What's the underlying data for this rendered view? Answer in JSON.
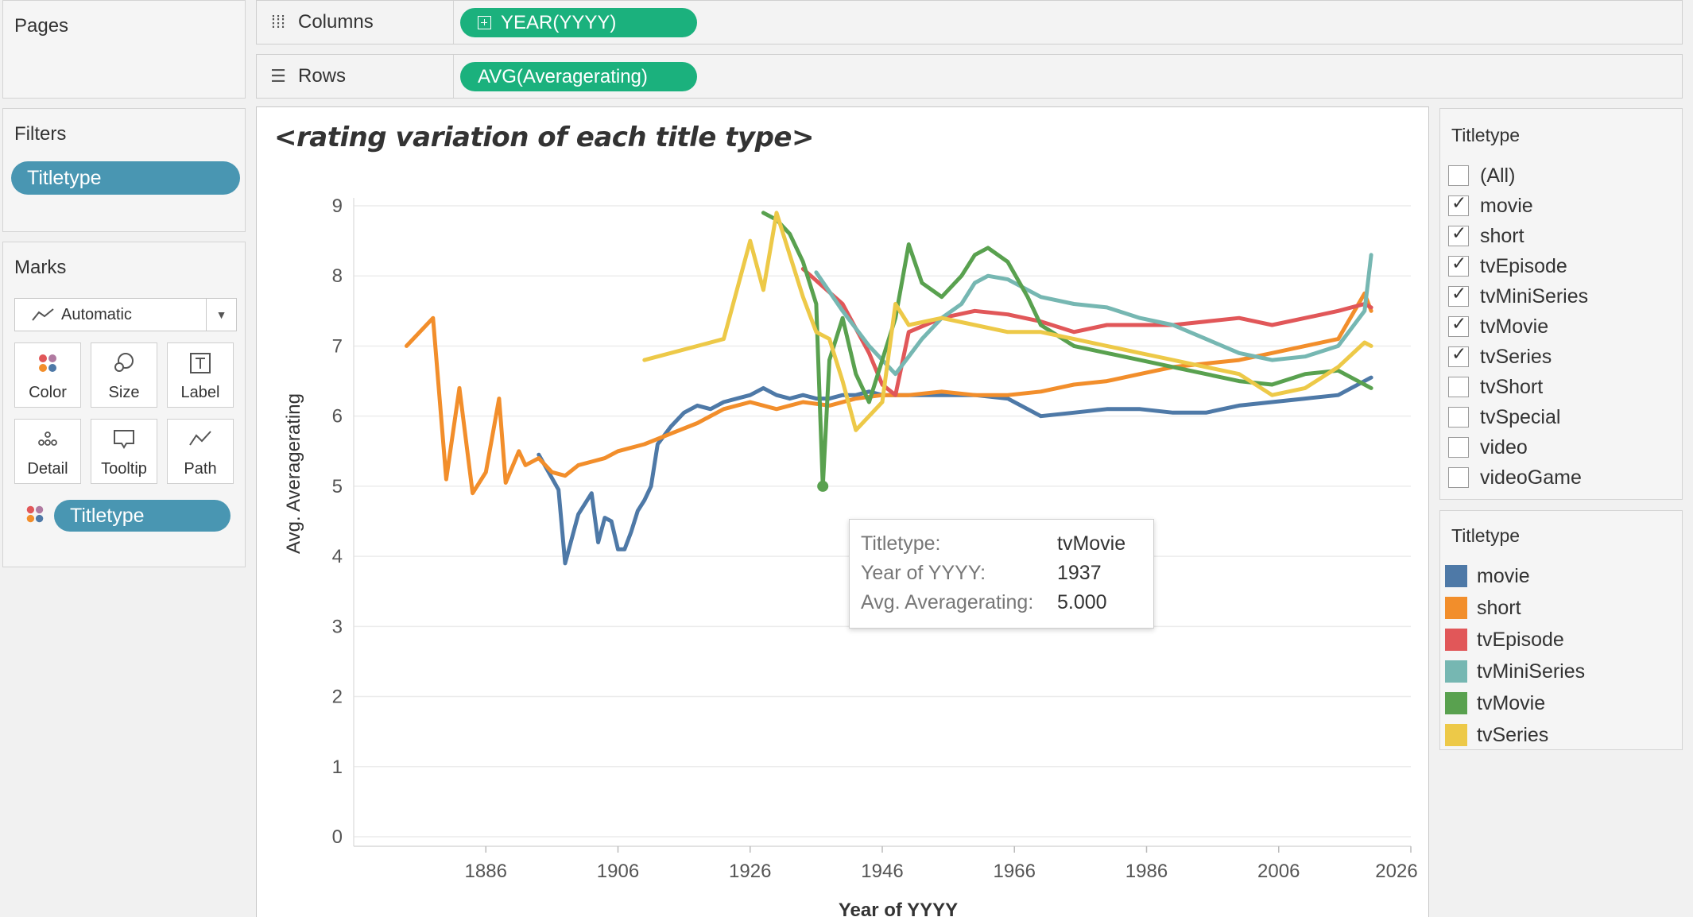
{
  "pages": {
    "title": "Pages"
  },
  "columns": {
    "label": "Columns",
    "pill": "YEAR(YYYY)"
  },
  "rows": {
    "label": "Rows",
    "pill": "AVG(Averagerating)"
  },
  "filters": {
    "title": "Filters",
    "pill": "Titletype"
  },
  "marks": {
    "title": "Marks",
    "type": "Automatic",
    "buttons": [
      "Color",
      "Size",
      "Label",
      "Detail",
      "Tooltip",
      "Path"
    ],
    "color_pill": "Titletype"
  },
  "chart": {
    "title": "<rating variation of each title type>",
    "xlabel": "Year of YYYY",
    "ylabel": "Avg. Averagerating"
  },
  "tooltip": {
    "rows": [
      {
        "label": "Titletype:",
        "value": "tvMovie"
      },
      {
        "label": "Year of YYYY:",
        "value": "1937"
      },
      {
        "label": "Avg. Averagerating:",
        "value": "5.000"
      }
    ]
  },
  "filter_card": {
    "title": "Titletype",
    "items": [
      {
        "label": "(All)",
        "checked": false
      },
      {
        "label": "movie",
        "checked": true
      },
      {
        "label": "short",
        "checked": true
      },
      {
        "label": "tvEpisode",
        "checked": true
      },
      {
        "label": "tvMiniSeries",
        "checked": true
      },
      {
        "label": "tvMovie",
        "checked": true
      },
      {
        "label": "tvSeries",
        "checked": true
      },
      {
        "label": "tvShort",
        "checked": false
      },
      {
        "label": "tvSpecial",
        "checked": false
      },
      {
        "label": "video",
        "checked": false
      },
      {
        "label": "videoGame",
        "checked": false
      }
    ]
  },
  "legend": {
    "title": "Titletype",
    "items": [
      {
        "label": "movie",
        "color": "#4e79a7"
      },
      {
        "label": "short",
        "color": "#f28e2b"
      },
      {
        "label": "tvEpisode",
        "color": "#e15759"
      },
      {
        "label": "tvMiniSeries",
        "color": "#76b7b2"
      },
      {
        "label": "tvMovie",
        "color": "#59a14f"
      },
      {
        "label": "tvSeries",
        "color": "#edc948"
      }
    ]
  },
  "chart_data": {
    "type": "line",
    "title": "<rating variation of each title type>",
    "xlabel": "Year of YYYY",
    "ylabel": "Avg. Averagerating",
    "xlim": [
      1866,
      2026
    ],
    "ylim": [
      0,
      9
    ],
    "x_ticks": [
      "1886",
      "1906",
      "1926",
      "1946",
      "1966",
      "1986",
      "2006",
      "2026"
    ],
    "y_ticks": [
      "0",
      "1",
      "2",
      "3",
      "4",
      "5",
      "6",
      "7",
      "8",
      "9"
    ],
    "grid": "horizontal",
    "series": [
      {
        "name": "movie",
        "color": "#4e79a7",
        "x": [
          1894,
          1897,
          1898,
          1900,
          1902,
          1903,
          1904,
          1905,
          1906,
          1907,
          1908,
          1909,
          1910,
          1911,
          1912,
          1914,
          1916,
          1918,
          1920,
          1922,
          1924,
          1926,
          1928,
          1930,
          1932,
          1934,
          1936,
          1938,
          1940,
          1942,
          1944,
          1946,
          1950,
          1955,
          1960,
          1965,
          1970,
          1975,
          1980,
          1985,
          1990,
          1995,
          2000,
          2005,
          2010,
          2015,
          2020
        ],
        "values": [
          5.45,
          4.95,
          3.9,
          4.6,
          4.9,
          4.2,
          4.55,
          4.5,
          4.1,
          4.1,
          4.35,
          4.65,
          4.8,
          5.0,
          5.6,
          5.85,
          6.05,
          6.15,
          6.1,
          6.2,
          6.25,
          6.3,
          6.4,
          6.3,
          6.25,
          6.3,
          6.25,
          6.25,
          6.3,
          6.3,
          6.35,
          6.3,
          6.3,
          6.3,
          6.3,
          6.25,
          6.0,
          6.05,
          6.1,
          6.1,
          6.05,
          6.05,
          6.15,
          6.2,
          6.25,
          6.3,
          6.55
        ]
      },
      {
        "name": "short",
        "color": "#f28e2b",
        "x": [
          1874,
          1878,
          1880,
          1882,
          1884,
          1886,
          1888,
          1889,
          1891,
          1892,
          1894,
          1896,
          1898,
          1900,
          1902,
          1904,
          1906,
          1910,
          1914,
          1918,
          1922,
          1926,
          1930,
          1934,
          1938,
          1942,
          1946,
          1950,
          1955,
          1960,
          1965,
          1970,
          1975,
          1980,
          1985,
          1990,
          1995,
          2000,
          2005,
          2010,
          2015,
          2019,
          2020
        ],
        "values": [
          7.0,
          7.4,
          5.1,
          6.4,
          4.9,
          5.2,
          6.25,
          5.05,
          5.5,
          5.3,
          5.4,
          5.2,
          5.15,
          5.3,
          5.35,
          5.4,
          5.5,
          5.6,
          5.75,
          5.9,
          6.1,
          6.2,
          6.1,
          6.2,
          6.15,
          6.25,
          6.3,
          6.3,
          6.35,
          6.3,
          6.3,
          6.35,
          6.45,
          6.5,
          6.6,
          6.7,
          6.75,
          6.8,
          6.9,
          7.0,
          7.1,
          7.75,
          7.5
        ]
      },
      {
        "name": "tvEpisode",
        "color": "#e15759",
        "x": [
          1934,
          1940,
          1944,
          1946,
          1948,
          1950,
          1955,
          1960,
          1965,
          1970,
          1975,
          1980,
          1985,
          1990,
          1995,
          2000,
          2005,
          2010,
          2015,
          2019,
          2020
        ],
        "values": [
          8.1,
          7.6,
          6.9,
          6.45,
          6.3,
          7.2,
          7.4,
          7.5,
          7.45,
          7.35,
          7.2,
          7.3,
          7.3,
          7.3,
          7.35,
          7.4,
          7.3,
          7.4,
          7.5,
          7.6,
          7.55
        ]
      },
      {
        "name": "tvMiniSeries",
        "color": "#76b7b2",
        "x": [
          1936,
          1940,
          1944,
          1948,
          1950,
          1952,
          1955,
          1958,
          1960,
          1962,
          1965,
          1970,
          1975,
          1980,
          1985,
          1990,
          1995,
          2000,
          2005,
          2010,
          2015,
          2019,
          2020
        ],
        "values": [
          8.05,
          7.5,
          7.0,
          6.6,
          6.85,
          7.1,
          7.4,
          7.6,
          7.9,
          8.0,
          7.95,
          7.7,
          7.6,
          7.55,
          7.4,
          7.3,
          7.1,
          6.9,
          6.8,
          6.85,
          7.0,
          7.5,
          8.3
        ]
      },
      {
        "name": "tvMovie",
        "color": "#59a14f",
        "x": [
          1928,
          1930,
          1932,
          1934,
          1936,
          1937,
          1938,
          1940,
          1942,
          1944,
          1946,
          1948,
          1950,
          1952,
          1955,
          1958,
          1960,
          1962,
          1965,
          1968,
          1970,
          1975,
          1980,
          1985,
          1990,
          1995,
          2000,
          2005,
          2010,
          2015,
          2020
        ],
        "values": [
          8.9,
          8.8,
          8.6,
          8.2,
          7.6,
          5.0,
          6.8,
          7.4,
          6.6,
          6.2,
          6.8,
          7.4,
          8.45,
          7.9,
          7.7,
          8.0,
          8.3,
          8.4,
          8.2,
          7.7,
          7.3,
          7.0,
          6.9,
          6.8,
          6.7,
          6.6,
          6.5,
          6.45,
          6.6,
          6.65,
          6.4
        ]
      },
      {
        "name": "tvSeries",
        "color": "#edc948",
        "x": [
          1910,
          1922,
          1926,
          1928,
          1930,
          1932,
          1934,
          1936,
          1938,
          1940,
          1942,
          1944,
          1946,
          1948,
          1950,
          1955,
          1960,
          1965,
          1970,
          1975,
          1980,
          1985,
          1990,
          1995,
          2000,
          2005,
          2010,
          2015,
          2019,
          2020
        ],
        "values": [
          6.8,
          7.1,
          8.5,
          7.8,
          8.9,
          8.3,
          7.7,
          7.2,
          7.1,
          6.5,
          5.8,
          6.0,
          6.2,
          7.6,
          7.3,
          7.4,
          7.3,
          7.2,
          7.2,
          7.1,
          7.0,
          6.9,
          6.8,
          6.7,
          6.6,
          6.3,
          6.4,
          6.7,
          7.05,
          7.0
        ]
      }
    ]
  }
}
